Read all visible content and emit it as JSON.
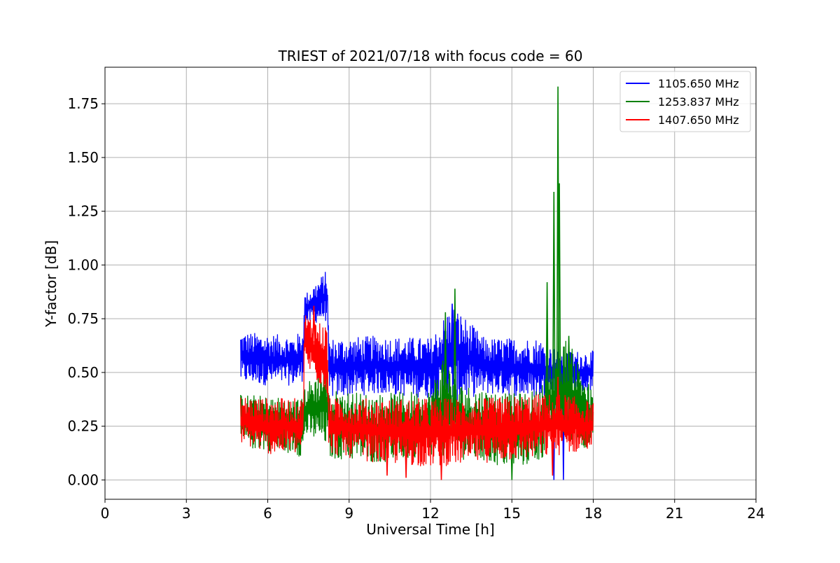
{
  "chart_data": {
    "type": "line",
    "title": "TRIEST of 2021/07/18 with focus code = 60",
    "xlabel": "Universal Time [h]",
    "ylabel": "Y-factor [dB]",
    "xlim": [
      0,
      24
    ],
    "ylim": [
      -0.09,
      1.92
    ],
    "xticks": [
      0,
      3,
      6,
      9,
      12,
      15,
      18,
      21,
      24
    ],
    "yticks": [
      0.0,
      0.25,
      0.5,
      0.75,
      1.0,
      1.25,
      1.5,
      1.75
    ],
    "xtick_labels": [
      "0",
      "3",
      "6",
      "9",
      "12",
      "15",
      "18",
      "21",
      "24"
    ],
    "ytick_labels": [
      "0.00",
      "0.25",
      "0.50",
      "0.75",
      "1.00",
      "1.25",
      "1.50",
      "1.75"
    ],
    "grid": true,
    "legend_position": "top-right",
    "series": [
      {
        "name": "1105.650 MHz",
        "color": "#0000ff",
        "band": [
          [
            5.0,
            0.45,
            0.69
          ],
          [
            6.0,
            0.44,
            0.68
          ],
          [
            7.0,
            0.44,
            0.67
          ],
          [
            7.3,
            0.46,
            0.7
          ],
          [
            7.35,
            0.72,
            0.86
          ],
          [
            8.2,
            0.74,
            0.98
          ],
          [
            8.25,
            0.38,
            0.66
          ],
          [
            10.0,
            0.4,
            0.67
          ],
          [
            12.0,
            0.38,
            0.66
          ],
          [
            12.8,
            0.36,
            0.82
          ],
          [
            14.0,
            0.4,
            0.66
          ],
          [
            16.0,
            0.38,
            0.66
          ],
          [
            16.4,
            0.4,
            0.62
          ],
          [
            17.0,
            0.38,
            0.6
          ],
          [
            18.0,
            0.42,
            0.6
          ]
        ],
        "spikes": [
          [
            12.8,
            0.82
          ],
          [
            16.55,
            0.0
          ],
          [
            16.9,
            0.0
          ],
          [
            12.1,
            0.35
          ]
        ]
      },
      {
        "name": "1253.837 MHz",
        "color": "#008000",
        "band": [
          [
            5.0,
            0.15,
            0.4
          ],
          [
            7.0,
            0.12,
            0.38
          ],
          [
            7.3,
            0.1,
            0.38
          ],
          [
            7.35,
            0.2,
            0.44
          ],
          [
            8.2,
            0.15,
            0.55
          ],
          [
            8.25,
            0.1,
            0.42
          ],
          [
            10.0,
            0.08,
            0.4
          ],
          [
            12.0,
            0.1,
            0.42
          ],
          [
            12.5,
            0.1,
            0.6
          ],
          [
            13.0,
            0.1,
            0.45
          ],
          [
            15.0,
            0.05,
            0.4
          ],
          [
            16.0,
            0.08,
            0.42
          ],
          [
            16.4,
            0.15,
            0.55
          ],
          [
            17.0,
            0.2,
            0.66
          ],
          [
            17.5,
            0.15,
            0.55
          ],
          [
            18.0,
            0.15,
            0.4
          ]
        ],
        "spikes": [
          [
            12.55,
            0.78
          ],
          [
            12.9,
            0.89
          ],
          [
            15.0,
            0.0
          ],
          [
            16.3,
            0.92
          ],
          [
            16.55,
            1.34
          ],
          [
            16.7,
            1.83
          ],
          [
            16.75,
            1.38
          ],
          [
            17.1,
            0.67
          ]
        ]
      },
      {
        "name": "1407.650 MHz",
        "color": "#ff0000",
        "band": [
          [
            5.0,
            0.17,
            0.39
          ],
          [
            6.0,
            0.12,
            0.38
          ],
          [
            7.3,
            0.12,
            0.38
          ],
          [
            7.35,
            0.52,
            0.78
          ],
          [
            8.2,
            0.4,
            0.72
          ],
          [
            8.25,
            0.12,
            0.38
          ],
          [
            10.0,
            0.08,
            0.38
          ],
          [
            12.0,
            0.06,
            0.38
          ],
          [
            14.0,
            0.08,
            0.38
          ],
          [
            16.0,
            0.1,
            0.4
          ],
          [
            17.0,
            0.12,
            0.4
          ],
          [
            18.0,
            0.14,
            0.36
          ]
        ],
        "spikes": [
          [
            7.7,
            0.81
          ],
          [
            10.4,
            0.02
          ],
          [
            11.1,
            0.01
          ],
          [
            12.4,
            0.0
          ],
          [
            16.5,
            0.02
          ],
          [
            16.7,
            0.48
          ]
        ]
      }
    ]
  }
}
